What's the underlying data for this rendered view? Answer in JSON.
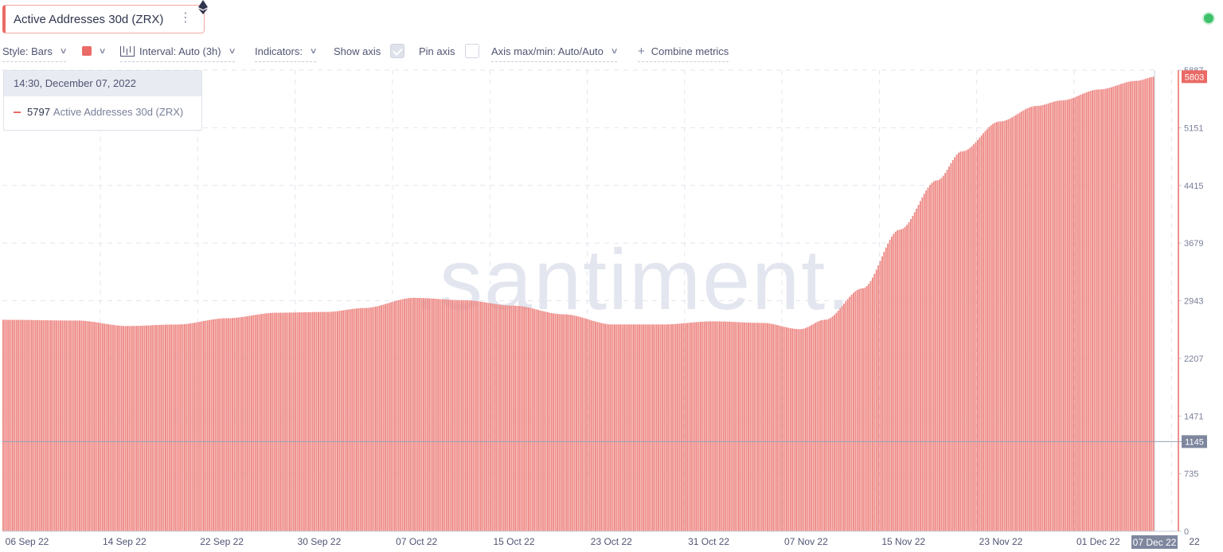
{
  "metric": {
    "title": "Active Addresses 30d (ZRX)",
    "menu_glyph": "⋮",
    "asset_icon": "ethereum-icon"
  },
  "status": {
    "color": "#3ec16a"
  },
  "toolbar": {
    "style_label": "Style: Bars",
    "color": "#ea6a66",
    "interval_label": "Interval: Auto (3h)",
    "indicators_label": "Indicators:",
    "show_axis_label": "Show axis",
    "show_axis_checked": true,
    "pin_axis_label": "Pin axis",
    "pin_axis_checked": false,
    "axis_label": "Axis max/min: Auto/Auto",
    "combine_label": "Combine metrics",
    "plus_glyph": "+"
  },
  "tooltip": {
    "date": "14:30, December 07, 2022",
    "value": "5797",
    "label": "Active Addresses 30d (ZRX)"
  },
  "watermark": ".santiment.",
  "chart_data": {
    "type": "bar",
    "title": "",
    "color": "#ea6a66",
    "series": [
      {
        "name": "Active Addresses 30d (ZRX)",
        "values_by_date": [
          [
            "06 Sep 22",
            2700
          ],
          [
            "10 Sep 22",
            2690
          ],
          [
            "14 Sep 22",
            2620
          ],
          [
            "18 Sep 22",
            2640
          ],
          [
            "22 Sep 22",
            2720
          ],
          [
            "26 Sep 22",
            2790
          ],
          [
            "30 Sep 22",
            2800
          ],
          [
            "03 Oct 22",
            2850
          ],
          [
            "07 Oct 22",
            2980
          ],
          [
            "11 Oct 22",
            2950
          ],
          [
            "15 Oct 22",
            2880
          ],
          [
            "19 Oct 22",
            2770
          ],
          [
            "23 Oct 22",
            2640
          ],
          [
            "27 Oct 22",
            2640
          ],
          [
            "31 Oct 22",
            2680
          ],
          [
            "04 Nov 22",
            2660
          ],
          [
            "07 Nov 22",
            2580
          ],
          [
            "09 Nov 22",
            2700
          ],
          [
            "12 Nov 22",
            3100
          ],
          [
            "15 Nov 22",
            3850
          ],
          [
            "18 Nov 22",
            4480
          ],
          [
            "20 Nov 22",
            4850
          ],
          [
            "23 Nov 22",
            5230
          ],
          [
            "26 Nov 22",
            5430
          ],
          [
            "28 Nov 22",
            5500
          ],
          [
            "01 Dec 22",
            5640
          ],
          [
            "04 Dec 22",
            5750
          ],
          [
            "07 Dec 22",
            5803
          ]
        ]
      }
    ],
    "x_tick_labels": [
      "06 Sep 22",
      "14 Sep 22",
      "22 Sep 22",
      "30 Sep 22",
      "07 Oct 22",
      "15 Oct 22",
      "23 Oct 22",
      "31 Oct 22",
      "07 Nov 22",
      "15 Nov 22",
      "23 Nov 22",
      "01 Dec 22"
    ],
    "x_current_label": "07 Dec 22",
    "x_trailing_label": "22",
    "y_tick_labels": [
      "5887",
      "5151",
      "4415",
      "3679",
      "2943",
      "2207",
      "1471",
      "735",
      "0"
    ],
    "ylim": [
      0,
      5887
    ],
    "last_value": "5803",
    "crosshair_value": "1145",
    "grid": true
  }
}
